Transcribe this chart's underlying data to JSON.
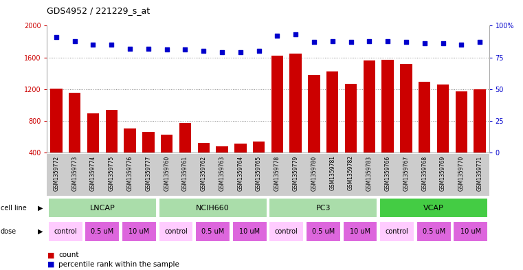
{
  "title": "GDS4952 / 221229_s_at",
  "samples": [
    "GSM1359772",
    "GSM1359773",
    "GSM1359774",
    "GSM1359775",
    "GSM1359776",
    "GSM1359777",
    "GSM1359760",
    "GSM1359761",
    "GSM1359762",
    "GSM1359763",
    "GSM1359764",
    "GSM1359765",
    "GSM1359778",
    "GSM1359779",
    "GSM1359780",
    "GSM1359781",
    "GSM1359782",
    "GSM1359783",
    "GSM1359766",
    "GSM1359767",
    "GSM1359768",
    "GSM1359769",
    "GSM1359770",
    "GSM1359771"
  ],
  "bar_counts": [
    1205,
    1155,
    890,
    940,
    700,
    660,
    625,
    770,
    520,
    475,
    510,
    540,
    1620,
    1650,
    1380,
    1420,
    1270,
    1560,
    1570,
    1520,
    1290,
    1260,
    1170,
    1200
  ],
  "percentile_ranks": [
    91,
    88,
    85,
    85,
    82,
    82,
    81,
    81,
    80,
    79,
    79,
    80,
    92,
    93,
    87,
    88,
    87,
    88,
    88,
    87,
    86,
    86,
    85,
    87
  ],
  "bar_color": "#cc0000",
  "dot_color": "#0000cc",
  "ylim_left": [
    400,
    2000
  ],
  "ylim_right": [
    0,
    100
  ],
  "yticks_left": [
    400,
    800,
    1200,
    1600,
    2000
  ],
  "yticks_right": [
    0,
    25,
    50,
    75,
    100
  ],
  "cell_line_groups": [
    {
      "label": "LNCAP",
      "start": 0,
      "end": 6,
      "color": "#aaddaa"
    },
    {
      "label": "NCIH660",
      "start": 6,
      "end": 12,
      "color": "#aaddaa"
    },
    {
      "label": "PC3",
      "start": 12,
      "end": 18,
      "color": "#aaddaa"
    },
    {
      "label": "VCAP",
      "start": 18,
      "end": 24,
      "color": "#44cc44"
    }
  ],
  "dose_groups": [
    {
      "label": "control",
      "start": 0,
      "end": 2,
      "color": "#ffccff"
    },
    {
      "label": "0.5 uM",
      "start": 2,
      "end": 4,
      "color": "#dd66dd"
    },
    {
      "label": "10 uM",
      "start": 4,
      "end": 6,
      "color": "#dd66dd"
    },
    {
      "label": "control",
      "start": 6,
      "end": 8,
      "color": "#ffccff"
    },
    {
      "label": "0.5 uM",
      "start": 8,
      "end": 10,
      "color": "#dd66dd"
    },
    {
      "label": "10 uM",
      "start": 10,
      "end": 12,
      "color": "#dd66dd"
    },
    {
      "label": "control",
      "start": 12,
      "end": 14,
      "color": "#ffccff"
    },
    {
      "label": "0.5 uM",
      "start": 14,
      "end": 16,
      "color": "#dd66dd"
    },
    {
      "label": "10 uM",
      "start": 16,
      "end": 18,
      "color": "#dd66dd"
    },
    {
      "label": "control",
      "start": 18,
      "end": 20,
      "color": "#ffccff"
    },
    {
      "label": "0.5 uM",
      "start": 20,
      "end": 22,
      "color": "#dd66dd"
    },
    {
      "label": "10 uM",
      "start": 22,
      "end": 24,
      "color": "#dd66dd"
    }
  ],
  "legend_count_color": "#cc0000",
  "legend_dot_color": "#0000cc",
  "bg_color": "#ffffff",
  "label_bg_color": "#cccccc",
  "grid_color": "#888888"
}
